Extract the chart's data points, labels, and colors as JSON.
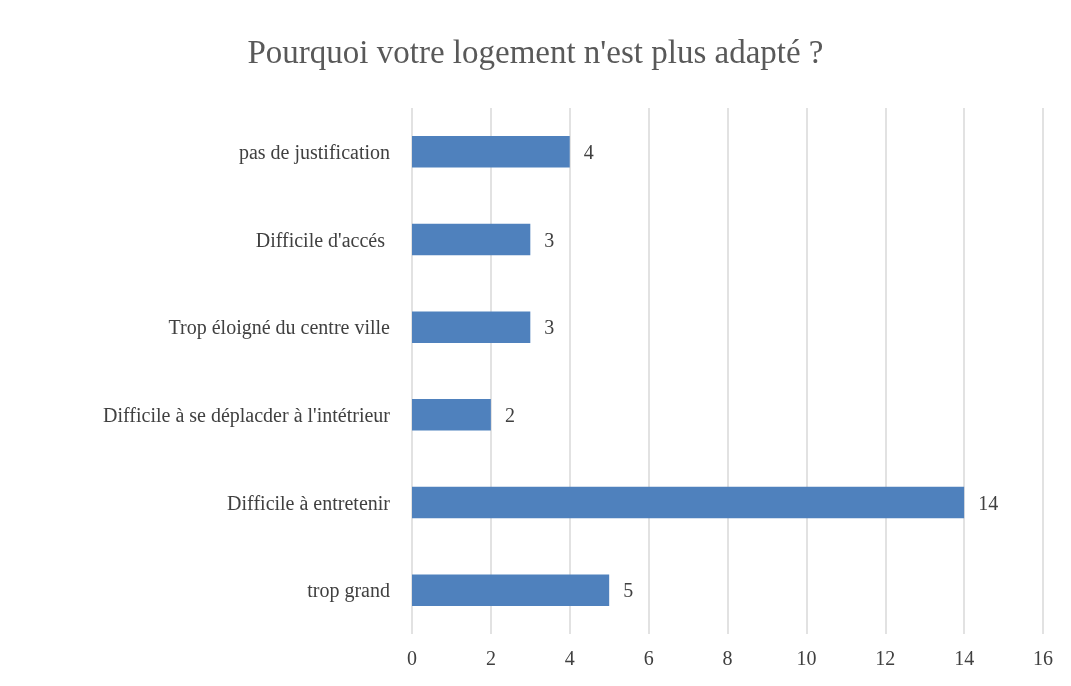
{
  "chart_data": {
    "type": "bar",
    "orientation": "horizontal",
    "title": "Pourquoi votre logement n'est plus adapté ?",
    "categories": [
      "pas de justification",
      "Difficile d'accés ",
      "Trop éloigné du centre ville",
      "Difficile à se déplacder à l'intétrieur",
      "Difficile à entretenir",
      "trop grand"
    ],
    "values": [
      4,
      3,
      3,
      2,
      14,
      5
    ],
    "color": "#4f81bd",
    "xlim": [
      0,
      16
    ],
    "xticks": [
      0,
      2,
      4,
      6,
      8,
      10,
      12,
      14,
      16
    ],
    "grid": "x",
    "data_labels": true
  }
}
